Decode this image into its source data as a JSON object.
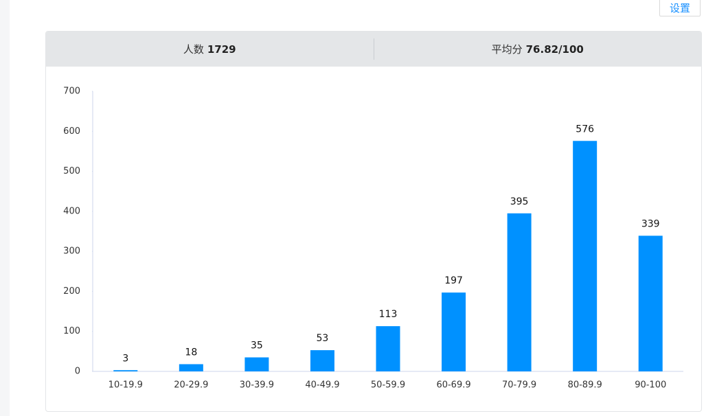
{
  "toolbar": {
    "settings_button": "设置"
  },
  "stats": [
    {
      "label": "人数",
      "value": "1729"
    },
    {
      "label": "平均分",
      "value": "76.82/100"
    }
  ],
  "chart_data": {
    "type": "bar",
    "categories": [
      "10-19.9",
      "20-29.9",
      "30-39.9",
      "40-49.9",
      "50-59.9",
      "60-69.9",
      "70-79.9",
      "80-89.9",
      "90-100"
    ],
    "values": [
      3,
      18,
      35,
      53,
      113,
      197,
      395,
      576,
      339
    ],
    "color": "#0091ff",
    "ylim": [
      0,
      700
    ],
    "yticks": [
      0,
      100,
      200,
      300,
      400,
      500,
      600,
      700
    ],
    "data_labels": true
  }
}
